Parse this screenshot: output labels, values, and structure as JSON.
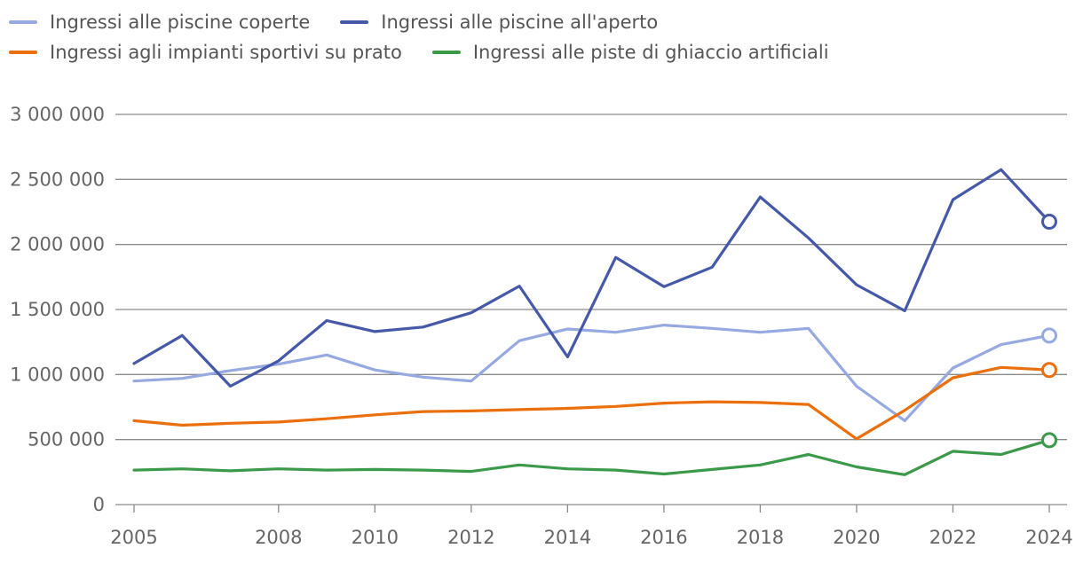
{
  "legend": {
    "row1": [
      {
        "label": "Ingressi alle piscine coperte",
        "color": "#97A9E1"
      },
      {
        "label": "Ingressi alle piscine all'aperto",
        "color": "#4659A8"
      }
    ],
    "row2": [
      {
        "label": "Ingressi agli impianti sportivi su prato",
        "color": "#EB6F0C"
      },
      {
        "label": "Ingressi alle piste di ghiaccio artificiali",
        "color": "#3B9A4A"
      }
    ]
  },
  "chart_data": {
    "type": "line",
    "x": [
      2005,
      2006,
      2007,
      2008,
      2009,
      2010,
      2011,
      2012,
      2013,
      2014,
      2015,
      2016,
      2017,
      2018,
      2019,
      2020,
      2021,
      2022,
      2023,
      2024
    ],
    "x_ticks": [
      2005,
      2008,
      2010,
      2012,
      2014,
      2016,
      2018,
      2020,
      2022,
      2024
    ],
    "x_tick_labels": [
      "2005",
      "2008",
      "2010",
      "2012",
      "2014",
      "2016",
      "2018",
      "2020",
      "2022",
      "2024"
    ],
    "ylim": [
      0,
      3000000
    ],
    "y_ticks": [
      0,
      500000,
      1000000,
      1500000,
      2000000,
      2500000,
      3000000
    ],
    "y_tick_labels": [
      "0",
      "500 000",
      "1 000 000",
      "1 500 000",
      "2 000 000",
      "2 500 000",
      "3 000 000"
    ],
    "grid": true,
    "legend_position": "top-left",
    "last_point_marker": true,
    "series": [
      {
        "name": "Ingressi alle piscine coperte",
        "color": "#97A9E1",
        "values": [
          950000,
          970000,
          1030000,
          1080000,
          1150000,
          1035000,
          980000,
          950000,
          1260000,
          1350000,
          1325000,
          1380000,
          1355000,
          1325000,
          1355000,
          910000,
          645000,
          1050000,
          1230000,
          1300000
        ]
      },
      {
        "name": "Ingressi alle piscine all'aperto",
        "color": "#4659A8",
        "values": [
          1085000,
          1300000,
          910000,
          1105000,
          1415000,
          1330000,
          1365000,
          1475000,
          1680000,
          1135000,
          1900000,
          1675000,
          1825000,
          2365000,
          2050000,
          1690000,
          1490000,
          2345000,
          2575000,
          2175000
        ]
      },
      {
        "name": "Ingressi agli impianti sportivi su prato",
        "color": "#EB6F0C",
        "values": [
          645000,
          610000,
          625000,
          635000,
          660000,
          690000,
          715000,
          720000,
          730000,
          740000,
          755000,
          780000,
          790000,
          785000,
          770000,
          505000,
          725000,
          975000,
          1055000,
          1035000
        ]
      },
      {
        "name": "Ingressi alle piste di ghiaccio artificiali",
        "color": "#3B9A4A",
        "values": [
          265000,
          275000,
          260000,
          275000,
          265000,
          270000,
          265000,
          255000,
          305000,
          275000,
          265000,
          235000,
          270000,
          305000,
          385000,
          290000,
          230000,
          410000,
          385000,
          495000
        ]
      }
    ]
  }
}
